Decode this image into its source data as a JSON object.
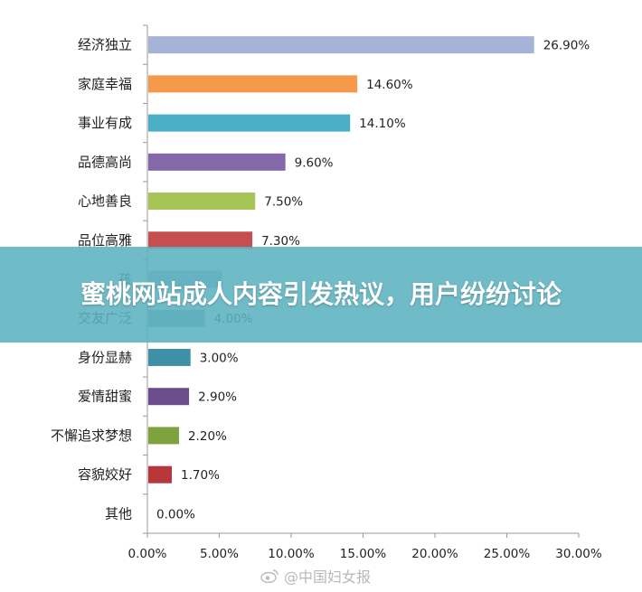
{
  "chart_data": {
    "type": "bar",
    "orientation": "horizontal",
    "categories": [
      "经济独立",
      "家庭幸福",
      "事业有成",
      "品德高尚",
      "心地善良",
      "品位高雅",
      "孩",
      "交友广泛",
      "身份显赫",
      "爱情甜蜜",
      "不懈追求梦想",
      "容貌姣好",
      "其他"
    ],
    "values": [
      26.9,
      14.6,
      14.1,
      9.6,
      7.5,
      7.3,
      5.2,
      4.0,
      3.0,
      2.9,
      2.2,
      1.7,
      0.0
    ],
    "value_labels": [
      "26.90%",
      "14.60%",
      "14.10%",
      "9.60%",
      "7.50%",
      "7.30%",
      "",
      "4.00%",
      "3.00%",
      "2.90%",
      "2.20%",
      "1.70%",
      "0.00%"
    ],
    "colors": [
      "#a4b3d6",
      "#f59a4b",
      "#4aafc6",
      "#8468a8",
      "#a7c457",
      "#c54e4e",
      "#a4b3d6",
      "#78a7a1",
      "#3f8fa7",
      "#6a4d8a",
      "#7ea23d",
      "#b7373a",
      "#aaaaaa"
    ],
    "xlim": [
      0,
      30
    ],
    "xticks": [
      "0.00%",
      "5.00%",
      "10.00%",
      "15.00%",
      "20.00%",
      "25.00%",
      "30.00%"
    ],
    "grid": false,
    "legend": "none"
  },
  "banner": {
    "text": "蜜桃网站成人内容引发热议，用户纷纷讨论"
  },
  "watermark": {
    "text": "@中国妇女报"
  }
}
